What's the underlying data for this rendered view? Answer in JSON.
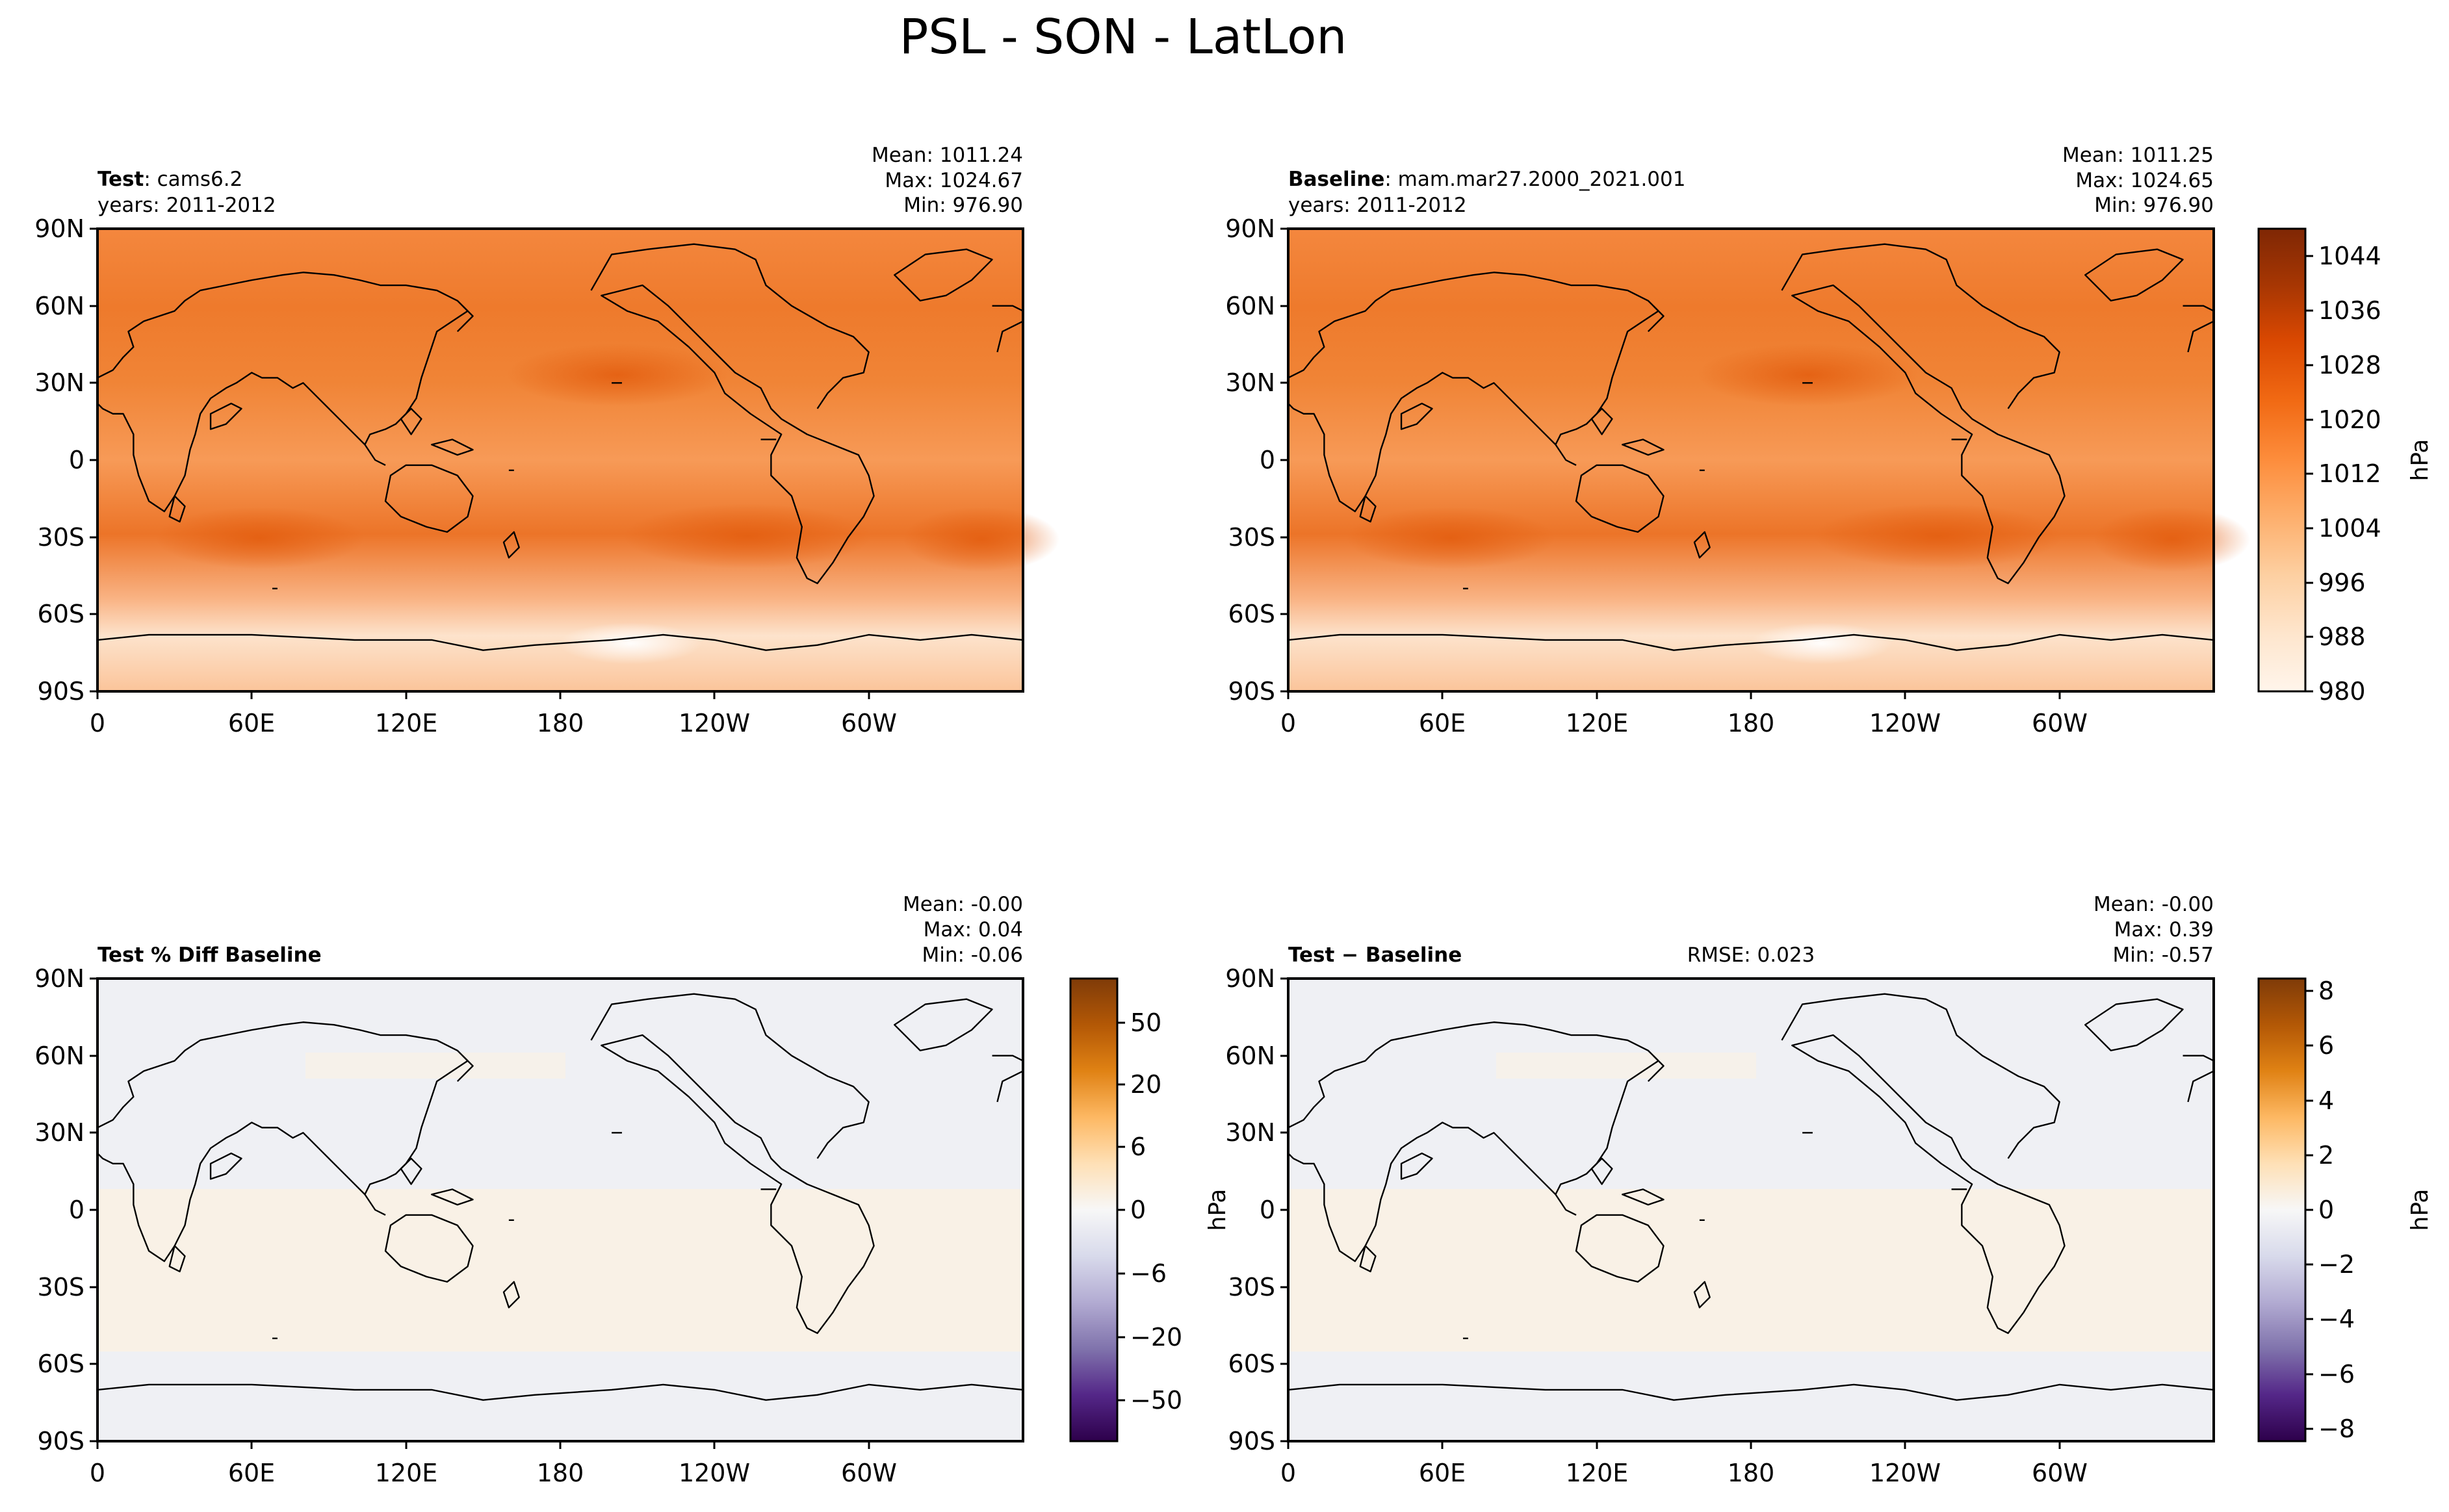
{
  "figure": {
    "title": "PSL - SON - LatLon"
  },
  "panels": {
    "test": {
      "label_bold": "Test",
      "label_rest": ": cams6.2",
      "years": "years: 2011-2012",
      "mean": "Mean: 1011.24",
      "max": "Max: 1024.67",
      "min": "Min: 976.90"
    },
    "baseline": {
      "label_bold": "Baseline",
      "label_rest": ": mam.mar27.2000_2021.001",
      "years": "years: 2011-2012",
      "mean": "Mean: 1011.25",
      "max": "Max: 1024.65",
      "min": "Min: 976.90"
    },
    "pct_diff": {
      "label_bold": "Test % Diff Baseline",
      "mean": "Mean: -0.00",
      "max": "Max:  0.04",
      "min": "Min: -0.06",
      "unit": "hPa"
    },
    "diff": {
      "label_bold": "Test − Baseline",
      "rmse": "RMSE: 0.023",
      "mean": "Mean: -0.00",
      "max": "Max:  0.39",
      "min": "Min: -0.57",
      "unit": "hPa"
    }
  },
  "chart_data": [
    {
      "type": "heatmap",
      "panel": "Test",
      "x_ticks": [
        "0",
        "60E",
        "120E",
        "180",
        "120W",
        "60W"
      ],
      "y_ticks": [
        "90N",
        "60N",
        "30N",
        "0",
        "30S",
        "60S",
        "90S"
      ],
      "xlim": [
        0,
        360
      ],
      "ylim": [
        -90,
        90
      ],
      "colorscale": "Oranges",
      "clim": [
        980,
        1048
      ]
    },
    {
      "type": "heatmap",
      "panel": "Baseline",
      "x_ticks": [
        "0",
        "60E",
        "120E",
        "180",
        "120W",
        "60W"
      ],
      "y_ticks": [
        "90N",
        "60N",
        "30N",
        "0",
        "30S",
        "60S",
        "90S"
      ],
      "xlim": [
        0,
        360
      ],
      "ylim": [
        -90,
        90
      ],
      "colorscale": "Oranges",
      "clim": [
        980,
        1048
      ],
      "colorbar": {
        "label": "hPa",
        "ticks": [
          "1044",
          "1036",
          "1028",
          "1020",
          "1012",
          "1004",
          "996",
          "988",
          "980"
        ]
      }
    },
    {
      "type": "heatmap",
      "panel": "Test % Diff Baseline",
      "x_ticks": [
        "0",
        "60E",
        "120E",
        "180",
        "120W",
        "60W"
      ],
      "y_ticks": [
        "90N",
        "60N",
        "30N",
        "0",
        "30S",
        "60S",
        "90S"
      ],
      "xlim": [
        0,
        360
      ],
      "ylim": [
        -90,
        90
      ],
      "colorscale": "PuOr_r",
      "colorbar": {
        "label": "hPa",
        "ticks": [
          "50",
          "20",
          "6",
          "0",
          "−6",
          "−20",
          "−50"
        ]
      }
    },
    {
      "type": "heatmap",
      "panel": "Test − Baseline",
      "x_ticks": [
        "0",
        "60E",
        "120E",
        "180",
        "120W",
        "60W"
      ],
      "y_ticks": [
        "90N",
        "60N",
        "30N",
        "0",
        "30S",
        "60S",
        "90S"
      ],
      "xlim": [
        0,
        360
      ],
      "ylim": [
        -90,
        90
      ],
      "colorscale": "PuOr_r",
      "clim": [
        -9,
        9
      ],
      "colorbar": {
        "label": "hPa",
        "ticks": [
          "8",
          "6",
          "4",
          "2",
          "0",
          "−2",
          "−4",
          "−6",
          "−8"
        ]
      }
    }
  ],
  "colors": {
    "oranges": [
      "#fff5eb",
      "#fee6ce",
      "#fdd0a2",
      "#fdae6b",
      "#fd8d3c",
      "#f16913",
      "#d94801",
      "#a63603",
      "#7f2704"
    ],
    "diverging": [
      "#2d004b",
      "#542788",
      "#8073ac",
      "#b2abd2",
      "#d8daeb",
      "#f7f7f7",
      "#fee0b6",
      "#fdb863",
      "#e08214",
      "#b35806",
      "#7f3b08"
    ],
    "near_zero_cool": "#eff0f4",
    "near_zero_warm": "#f9f1e6"
  }
}
